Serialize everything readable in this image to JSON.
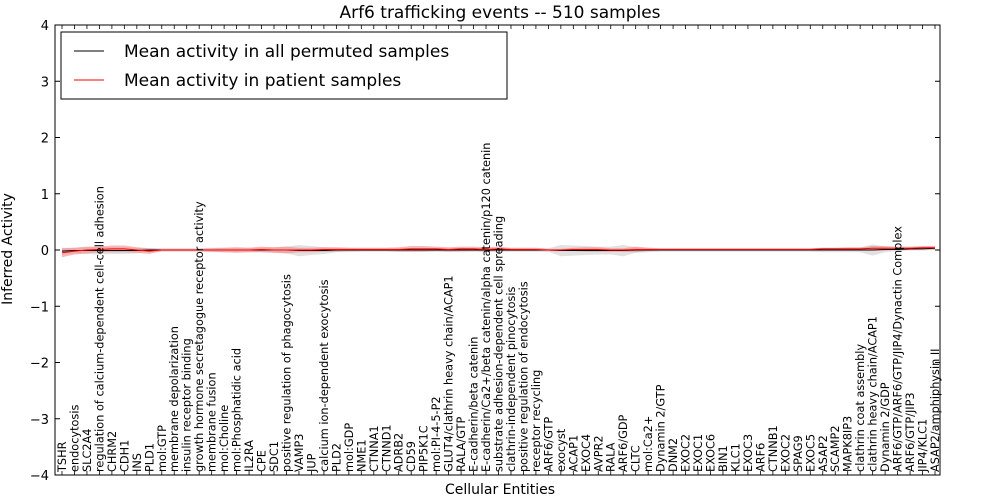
{
  "chart_data": {
    "type": "line",
    "title": "Arf6 trafficking events -- 510 samples",
    "xlabel": "Cellular Entities",
    "ylabel": "Inferred Activity",
    "ylim": [
      -4,
      4
    ],
    "yticks": [
      -4,
      -3,
      -2,
      -1,
      0,
      1,
      2,
      3,
      4
    ],
    "yticklabels": [
      "−4",
      "−3",
      "−2",
      "−1",
      "0",
      "1",
      "2",
      "3",
      "4"
    ],
    "grid": false,
    "legend_position": "top-left",
    "categories": [
      "TSHR",
      "endocytosis",
      "SLC2A4",
      "regulation of calcium-dependent cell-cell adhesion",
      "CHRM2",
      "CDH1",
      "INS",
      "PLD1",
      "mol:GTP",
      "membrane depolarization",
      "insulin receptor binding",
      "growth hormone secretagogue receptor activity",
      "membrane fusion",
      "mol:Choline",
      "mol:Phosphatidic acid",
      "IL2RA",
      "CPE",
      "SDC1",
      "positive regulation of phagocytosis",
      "VAMP3",
      "JUP",
      "calcium ion-dependent exocytosis",
      "PLD2",
      "mol:GDP",
      "NME1",
      "CTNNA1",
      "CTNND1",
      "ADRB2",
      "CD59",
      "PIP5K1C",
      "mol:PI-4-5-P2",
      "GLUT4/clathrin heavy chain/ACAP1",
      "RALA/GTP",
      "E-cadherin/beta catenin",
      "E-cadherin/Ca2+/beta catenin/alpha catenin/p120 catenin",
      "substrate adhesion-dependent cell spreading",
      "clathrin-independent pinocytosis",
      "positive regulation of endocytosis",
      "receptor recycling",
      "ARF6/GTP",
      "exocyst",
      "ACAP1",
      "EXOC4",
      "AVPR2",
      "RALA",
      "ARF6/GDP",
      "CLTC",
      "mol:Ca2+",
      "Dynamin 2/GTP",
      "DNM2",
      "EXOC2",
      "EXOC1",
      "EXOC6",
      "BIN1",
      "KLC1",
      "EXOC3",
      "ARF6",
      "CTNNB1",
      "EXOC2",
      "SPAG9",
      "EXOC5",
      "ASAP2",
      "SCAMP2",
      "MAPK8IP3",
      "clathrin coat assembly",
      "clathrin heavy chain/ACAP1",
      "Dynamin 2/GDP",
      "ARF6/GTP/ARF6/GTP/JIP4/Dynactin Complex",
      "ARF6/GTP/JIP3",
      "JIP4/KLC1",
      "ASAP2/amphiphysin II"
    ],
    "series": [
      {
        "name": "Mean activity in all permuted samples",
        "color": "#000000",
        "values": [
          -0.02,
          -0.01,
          -0.01,
          -0.01,
          -0.01,
          -0.01,
          -0.01,
          0,
          0,
          0,
          0,
          0,
          0,
          0,
          0,
          0,
          0,
          0,
          0,
          -0.01,
          -0.01,
          -0.01,
          0,
          0,
          0,
          0,
          0,
          0,
          0,
          0,
          0,
          0,
          0,
          0,
          0,
          0,
          0,
          0,
          0,
          0,
          -0.01,
          -0.01,
          -0.01,
          -0.01,
          -0.01,
          -0.01,
          0,
          0,
          0,
          0,
          0,
          0,
          0,
          0,
          0,
          0,
          0,
          0,
          0,
          0,
          0,
          0,
          0,
          0,
          0,
          0,
          0.01,
          0.01,
          0.02,
          0.02,
          0.03
        ],
        "band": [
          0.06,
          0.05,
          0.06,
          0.07,
          0.06,
          0.06,
          0.05,
          0.03,
          0.03,
          0.03,
          0.03,
          0.03,
          0.04,
          0.04,
          0.04,
          0.04,
          0.04,
          0.05,
          0.06,
          0.1,
          0.08,
          0.06,
          0.04,
          0.04,
          0.03,
          0.03,
          0.03,
          0.03,
          0.03,
          0.03,
          0.03,
          0.03,
          0.04,
          0.03,
          0.03,
          0.03,
          0.03,
          0.03,
          0.03,
          0.03,
          0.1,
          0.09,
          0.08,
          0.07,
          0.07,
          0.1,
          0.05,
          0.04,
          0.03,
          0.03,
          0.03,
          0.03,
          0.03,
          0.03,
          0.03,
          0.03,
          0.03,
          0.03,
          0.03,
          0.03,
          0.03,
          0.04,
          0.04,
          0.04,
          0.04,
          0.1,
          0.05,
          0.03,
          0.03,
          0.03,
          0.03
        ]
      },
      {
        "name": "Mean activity in patient samples",
        "color": "#ff0000",
        "fill": "#f08080",
        "values": [
          -0.05,
          -0.02,
          0,
          0.01,
          0.02,
          0.02,
          0,
          -0.02,
          0,
          0,
          0,
          0,
          0,
          0,
          0,
          0,
          0.01,
          0,
          0,
          0,
          0,
          0.01,
          0.01,
          0.01,
          0.01,
          0.01,
          0.01,
          0.01,
          0.02,
          0.02,
          0.02,
          0.01,
          0.02,
          0.02,
          0.01,
          0.02,
          0.01,
          0.01,
          0.01,
          0,
          0,
          0.01,
          0.01,
          0.01,
          0,
          0,
          0.01,
          0.01,
          0.01,
          0.01,
          0.01,
          0.01,
          0.01,
          0.01,
          0.01,
          0.01,
          0.01,
          0.01,
          0.01,
          0.01,
          0.01,
          0.02,
          0.02,
          0.02,
          0.02,
          0.03,
          0.03,
          0.03,
          0.03,
          0.04,
          0.04
        ],
        "band": [
          0.08,
          0.06,
          0.06,
          0.05,
          0.06,
          0.06,
          0.05,
          0.05,
          0.02,
          0.02,
          0.02,
          0.02,
          0.03,
          0.04,
          0.05,
          0.04,
          0.05,
          0.05,
          0.06,
          0.04,
          0.04,
          0.04,
          0.04,
          0.03,
          0.03,
          0.03,
          0.03,
          0.04,
          0.05,
          0.05,
          0.04,
          0.04,
          0.04,
          0.04,
          0.04,
          0.04,
          0.03,
          0.03,
          0.03,
          0.02,
          0.02,
          0.03,
          0.04,
          0.04,
          0.03,
          0.03,
          0.05,
          0.03,
          0.02,
          0.02,
          0.02,
          0.02,
          0.02,
          0.02,
          0.02,
          0.02,
          0.02,
          0.02,
          0.02,
          0.02,
          0.02,
          0.02,
          0.02,
          0.03,
          0.03,
          0.04,
          0.04,
          0.03,
          0.03,
          0.03,
          0.03
        ]
      }
    ]
  }
}
